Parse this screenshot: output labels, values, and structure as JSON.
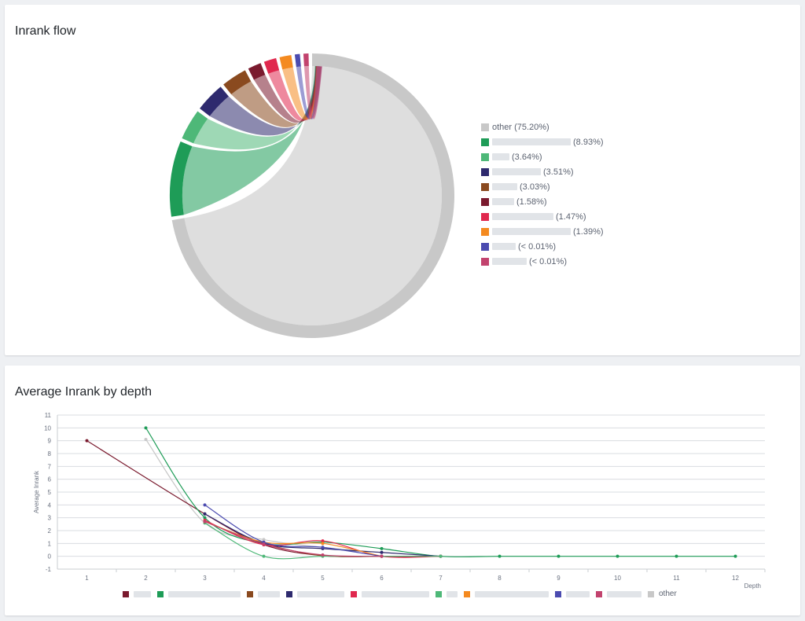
{
  "card1": {
    "title": "Inrank flow"
  },
  "card2": {
    "title": "Average Inrank by depth"
  },
  "chart_data": [
    {
      "type": "chord",
      "title": "Inrank flow",
      "series": [
        {
          "name": "other",
          "label": "(75.20%)",
          "share": 75.2,
          "color": "#c8c8c8"
        },
        {
          "name": "",
          "label": "(8.93%)",
          "share": 8.93,
          "color": "#1e9c57"
        },
        {
          "name": "",
          "label": "(3.64%)",
          "share": 3.64,
          "color": "#4eb878"
        },
        {
          "name": "",
          "label": "(3.51%)",
          "share": 3.51,
          "color": "#2e2a6e"
        },
        {
          "name": "",
          "label": "(3.03%)",
          "share": 3.03,
          "color": "#8a4a1f"
        },
        {
          "name": "",
          "label": "(1.58%)",
          "share": 1.58,
          "color": "#7a1a2e"
        },
        {
          "name": "",
          "label": "(1.47%)",
          "share": 1.47,
          "color": "#e0284e"
        },
        {
          "name": "",
          "label": "(1.39%)",
          "share": 1.39,
          "color": "#f48a20"
        },
        {
          "name": "",
          "label": "(< 0.01%)",
          "share": 0.004,
          "color": "#4b4bb0"
        },
        {
          "name": "",
          "label": "(< 0.01%)",
          "share": 0.004,
          "color": "#c2436e"
        }
      ]
    },
    {
      "type": "line",
      "title": "Average Inrank by depth",
      "xlabel": "Depth",
      "ylabel": "Average Inrank",
      "x": [
        1,
        2,
        3,
        4,
        5,
        6,
        7,
        8,
        9,
        10,
        11,
        12
      ],
      "ylim": [
        -1,
        11
      ],
      "yticks": [
        "-1",
        "0",
        "1",
        "2",
        "3",
        "4",
        "5",
        "6",
        "7",
        "8",
        "9",
        "10",
        "11"
      ],
      "xticks": [
        "1",
        "2",
        "3",
        "4",
        "5",
        "6",
        "7",
        "8",
        "9",
        "10",
        "11",
        "12"
      ],
      "grid": true,
      "series": [
        {
          "name": "",
          "color": "#7a1a2e",
          "points": [
            [
              1,
              9
            ],
            [
              3,
              3.3
            ],
            [
              4,
              0.9
            ],
            [
              5,
              0.05
            ],
            [
              6,
              0
            ],
            [
              7,
              0
            ]
          ]
        },
        {
          "name": "",
          "color": "#1e9c57",
          "points": [
            [
              2,
              10
            ],
            [
              3,
              3.0
            ],
            [
              4,
              1.0
            ],
            [
              5,
              1.1
            ],
            [
              6,
              0.6
            ],
            [
              7,
              0
            ],
            [
              8,
              0
            ],
            [
              9,
              0
            ],
            [
              10,
              0
            ],
            [
              11,
              0
            ],
            [
              12,
              0
            ]
          ]
        },
        {
          "name": "",
          "color": "#8a4a1f",
          "points": [
            [
              3,
              2.7
            ],
            [
              4,
              1.0
            ],
            [
              5,
              0.05
            ],
            [
              6,
              0
            ]
          ]
        },
        {
          "name": "",
          "color": "#2e2a6e",
          "points": [
            [
              3,
              3.3
            ],
            [
              4,
              1.0
            ],
            [
              5,
              0.6
            ],
            [
              6,
              0.3
            ],
            [
              7,
              0
            ]
          ]
        },
        {
          "name": "",
          "color": "#e0284e",
          "points": [
            [
              3,
              2.8
            ],
            [
              4,
              0.9
            ],
            [
              5,
              1.2
            ],
            [
              6,
              0
            ],
            [
              7,
              0
            ]
          ]
        },
        {
          "name": "",
          "color": "#4eb878",
          "points": [
            [
              3,
              2.6
            ],
            [
              4,
              0
            ],
            [
              5,
              0
            ],
            [
              6,
              0
            ],
            [
              7,
              0
            ]
          ]
        },
        {
          "name": "",
          "color": "#f48a20",
          "points": [
            [
              3,
              2.7
            ],
            [
              4,
              1.1
            ],
            [
              5,
              1.0
            ],
            [
              6,
              0
            ]
          ]
        },
        {
          "name": "",
          "color": "#4b4bb0",
          "points": [
            [
              3,
              4.0
            ],
            [
              4,
              1.1
            ],
            [
              5,
              0.7
            ],
            [
              6,
              0
            ]
          ]
        },
        {
          "name": "",
          "color": "#c2436e",
          "points": [
            [
              3,
              2.7
            ],
            [
              4,
              0.95
            ],
            [
              5,
              0.1
            ],
            [
              6,
              0
            ]
          ]
        },
        {
          "name": "other",
          "color": "#c8c8c8",
          "points": [
            [
              2,
              9.1
            ],
            [
              3,
              2.6
            ],
            [
              4,
              1.3
            ],
            [
              5,
              0.7
            ],
            [
              6,
              0.3
            ],
            [
              7,
              0
            ]
          ]
        }
      ]
    }
  ]
}
